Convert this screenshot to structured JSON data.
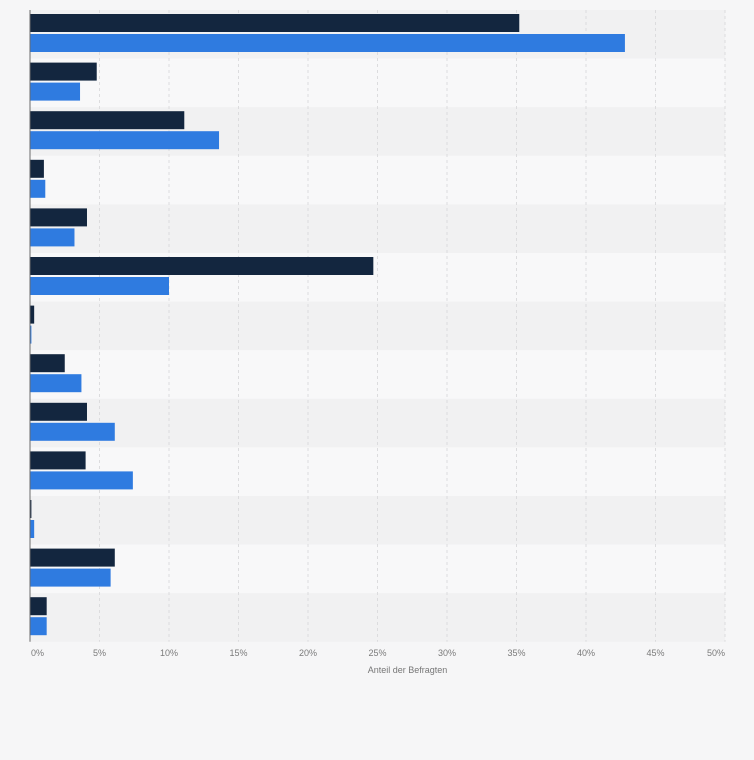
{
  "chart_data": {
    "type": "bar",
    "orientation": "horizontal",
    "categories": [
      "",
      "",
      "",
      "",
      "",
      "",
      "",
      "",
      "",
      "",
      "",
      "",
      ""
    ],
    "series": [
      {
        "color": "#13263f",
        "values": [
          35.2,
          4.8,
          11.1,
          1.0,
          4.1,
          24.7,
          0.3,
          2.5,
          4.1,
          4.0,
          0.1,
          6.1,
          1.2
        ]
      },
      {
        "color": "#2f7be0",
        "values": [
          42.8,
          3.6,
          13.6,
          1.1,
          3.2,
          10.0,
          0.1,
          3.7,
          6.1,
          7.4,
          0.3,
          5.8,
          1.2
        ]
      }
    ],
    "xlim": [
      0,
      50
    ],
    "xticks": [
      "0%",
      "5%",
      "10%",
      "15%",
      "20%",
      "25%",
      "30%",
      "35%",
      "40%",
      "45%",
      "50%"
    ],
    "xlabel": "Anteil der Befragten",
    "grid": true
  },
  "colors": {
    "band_even": "#f1f1f2",
    "band_odd": "#f8f8f9",
    "grid": "#dcdcde",
    "axis": "#6b6b6b"
  }
}
